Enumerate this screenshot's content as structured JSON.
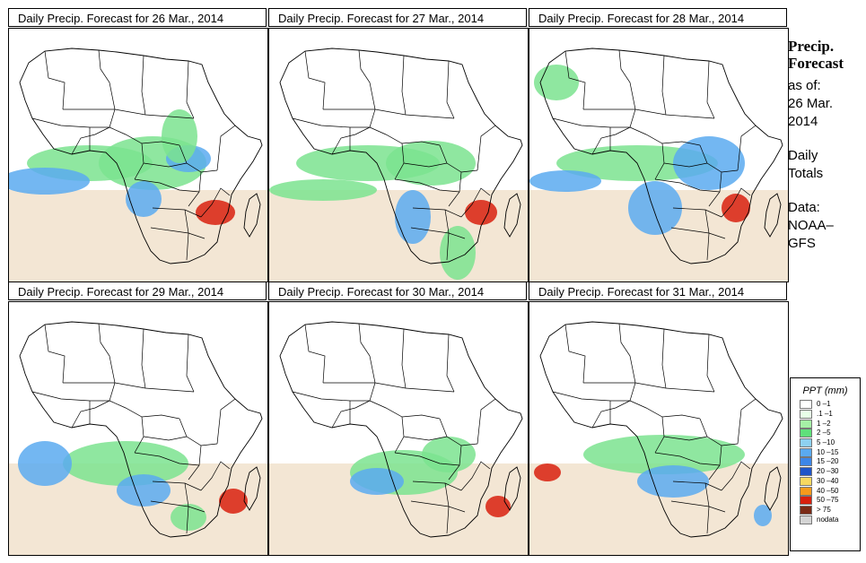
{
  "panels": [
    {
      "title": "Daily Precip. Forecast for  26 Mar., 2014"
    },
    {
      "title": "Daily Precip. Forecast for  27 Mar., 2014"
    },
    {
      "title": "Daily Precip. Forecast for  28 Mar., 2014"
    },
    {
      "title": "Daily Precip. Forecast for  29 Mar., 2014"
    },
    {
      "title": "Daily Precip. Forecast for  30 Mar., 2014"
    },
    {
      "title": "Daily Precip. Forecast for  31 Mar., 2014"
    }
  ],
  "side": {
    "heading_line1": "Precip.",
    "heading_line2": "Forecast",
    "as_of_line1": "as of:",
    "as_of_line2": "26 Mar.",
    "as_of_line3": "2014",
    "totals_line1": "Daily",
    "totals_line2": "Totals",
    "data_line1": "Data:",
    "data_line2": "NOAA–",
    "data_line3": "GFS"
  },
  "legend": {
    "title": "PPT (mm)",
    "items": [
      {
        "label": "0 –1",
        "color": "#ffffff"
      },
      {
        "label": ".1 –1",
        "color": "#e8ffe8"
      },
      {
        "label": "1 –2",
        "color": "#a6f0a6"
      },
      {
        "label": "2 –5",
        "color": "#5fe07a"
      },
      {
        "label": "5 –10",
        "color": "#8ed1f0"
      },
      {
        "label": "10 –15",
        "color": "#5aaaf0"
      },
      {
        "label": "15 –20",
        "color": "#3d86e8"
      },
      {
        "label": "20 –30",
        "color": "#1f55c8"
      },
      {
        "label": "30 –40",
        "color": "#f8d860"
      },
      {
        "label": "40 –50",
        "color": "#f59a1c"
      },
      {
        "label": "50 –75",
        "color": "#d8200e"
      },
      {
        "label": "> 75",
        "color": "#7a2a16"
      },
      {
        "label": "nodata",
        "color": "#d4d4d4"
      }
    ]
  },
  "colors": {
    "dry": "#ead2b0",
    "light": "#7be38f",
    "moderate": "#5aaaf0",
    "heavy": "#1f55c8",
    "extreme": "#d8200e",
    "border": "#000000"
  }
}
